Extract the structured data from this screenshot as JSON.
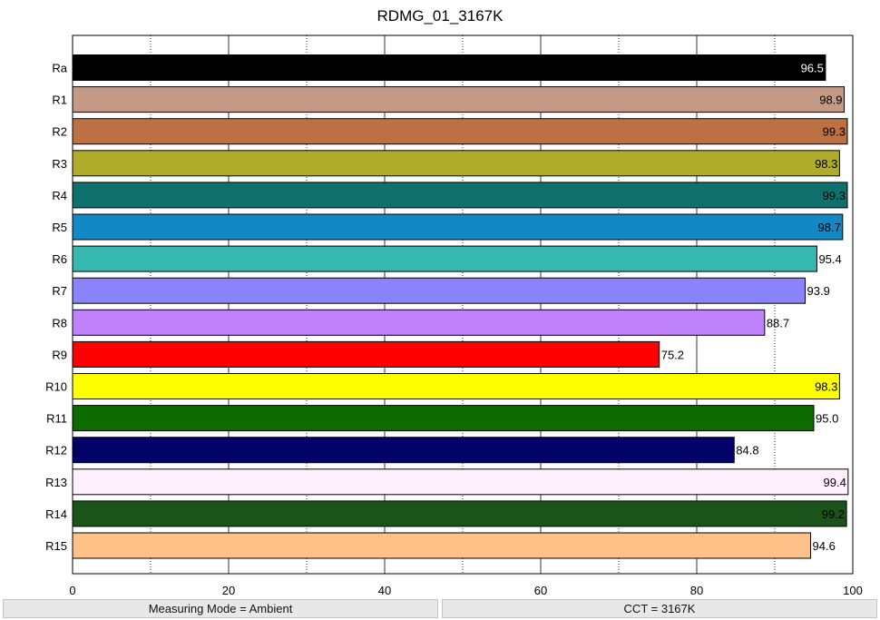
{
  "chart_data": {
    "type": "bar",
    "orientation": "horizontal",
    "title": "RDMG_01_3167K",
    "xlabel": "",
    "ylabel": "",
    "xlim": [
      0,
      100
    ],
    "xticks": [
      0,
      20,
      40,
      60,
      80,
      100
    ],
    "grid": "vertical dotted + solid",
    "categories": [
      "Ra",
      "R1",
      "R2",
      "R3",
      "R4",
      "R5",
      "R6",
      "R7",
      "R8",
      "R9",
      "R10",
      "R11",
      "R12",
      "R13",
      "R14",
      "R15"
    ],
    "values": [
      96.5,
      98.9,
      99.3,
      98.3,
      99.3,
      98.7,
      95.4,
      93.9,
      88.7,
      75.2,
      98.3,
      95.0,
      84.8,
      99.4,
      99.2,
      94.6
    ],
    "labels": [
      "96.5",
      "98.9",
      "99.3",
      "98.3",
      "99.3",
      "98.7",
      "95.4",
      "93.9",
      "88.7",
      "75.2",
      "98.3",
      "95.0",
      "84.8",
      "99.4",
      "99.2",
      "94.6"
    ],
    "colors": [
      "#000000",
      "#c49a87",
      "#bd7142",
      "#afac2b",
      "#0f716e",
      "#1289c6",
      "#36b8b0",
      "#8a83fb",
      "#bf81fc",
      "#fe0000",
      "#ffff00",
      "#0c6c00",
      "#020168",
      "#fff0fd",
      "#1b541b",
      "#fec188"
    ]
  },
  "status_bar": {
    "measuring_mode": "Measuring Mode = Ambient",
    "cct": "CCT = 3167K"
  }
}
